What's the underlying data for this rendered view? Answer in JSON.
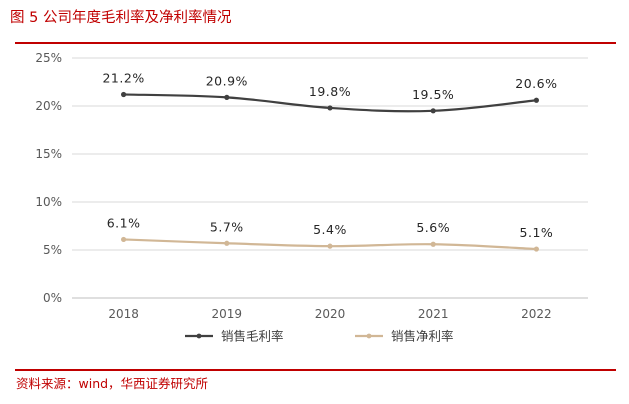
{
  "figure": {
    "title": "图 5 公司年度毛利率及净利率情况",
    "source": "资料来源：wind，华西证券研究所"
  },
  "chart_data": {
    "type": "line",
    "title": "",
    "xlabel": "",
    "ylabel": "",
    "categories": [
      "2018",
      "2019",
      "2020",
      "2021",
      "2022"
    ],
    "ylim": [
      0,
      25
    ],
    "y_ticks": [
      "0%",
      "5%",
      "10%",
      "15%",
      "20%",
      "25%"
    ],
    "y_tick_values": [
      0,
      5,
      10,
      15,
      20,
      25
    ],
    "grid": true,
    "legend_position": "bottom",
    "series": [
      {
        "name": "销售毛利率",
        "values": [
          21.2,
          20.9,
          19.8,
          19.5,
          20.6
        ],
        "labels": [
          "21.2%",
          "20.9%",
          "19.8%",
          "19.5%",
          "20.6%"
        ],
        "color": "#404040"
      },
      {
        "name": "销售净利率",
        "values": [
          6.1,
          5.7,
          5.4,
          5.6,
          5.1
        ],
        "labels": [
          "6.1%",
          "5.7%",
          "5.4%",
          "5.6%",
          "5.1%"
        ],
        "color": "#d1b796"
      }
    ]
  }
}
